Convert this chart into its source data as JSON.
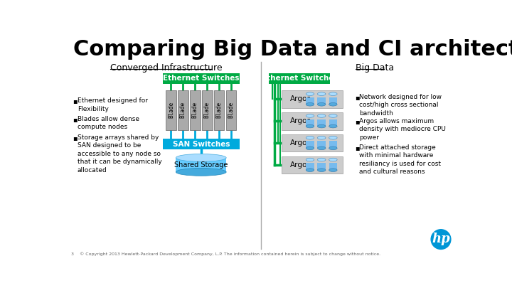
{
  "title": "Comparing Big Data and CI architectures",
  "title_fontsize": 22,
  "bg_color": "#ffffff",
  "ci_label": "Converged Infrastructure",
  "bd_label": "Big Data",
  "green_color": "#00aa44",
  "blue_color": "#00aadd",
  "blade_color": "#aaaaaa",
  "ci_bullets": [
    "Ethernet designed for\nFlexibility",
    "Blades allow dense\ncompute nodes",
    "Storage arrays shared by\nSAN designed to be\naccessible to any node so\nthat it can be dynamically\nallocated"
  ],
  "bd_bullets": [
    "Network designed for low\ncost/high cross sectional\nbandwidth",
    "Argos allows maximum\ndensity with mediocre CPU\npower",
    "Direct attached storage\nwith minimal hardware\nresiliancy is used for cost\nand cultural reasons"
  ],
  "footer": "3    © Copyright 2013 Hewlett-Packard Development Company, L.P. The information contained herein is subject to change without notice.",
  "argos_rows": [
    "Argos",
    "Argos",
    "Argos",
    "Argos"
  ],
  "blade_count": 6
}
